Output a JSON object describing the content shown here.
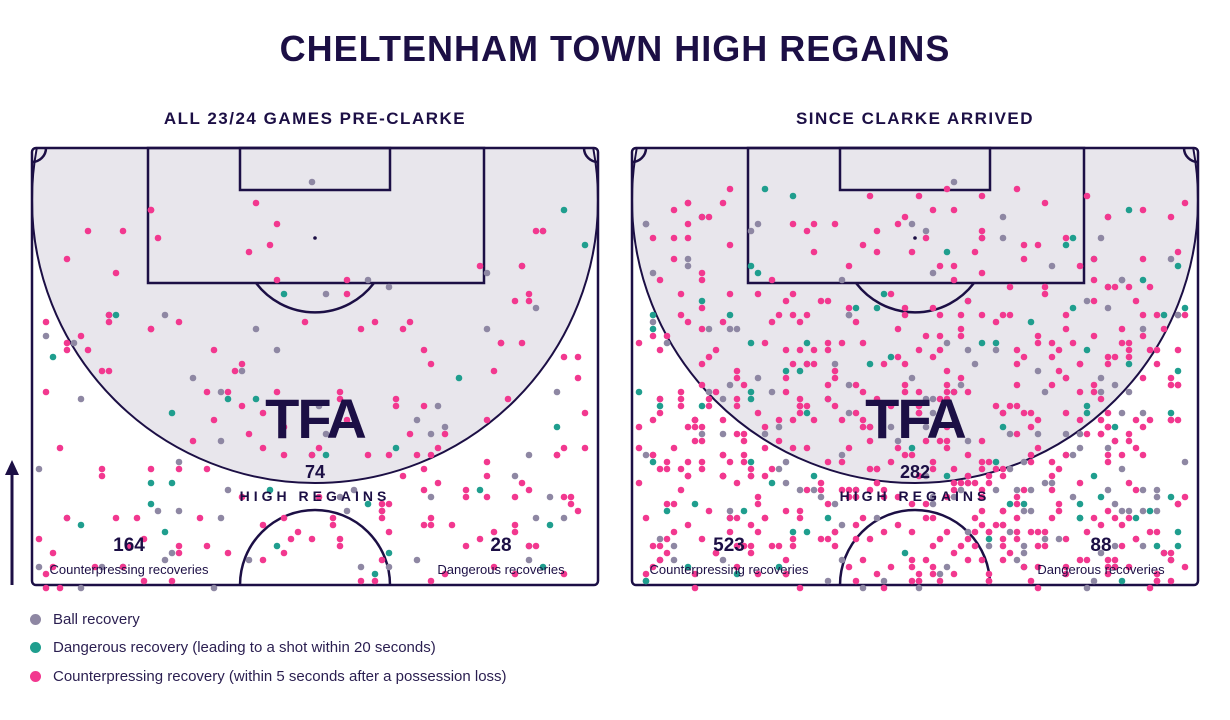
{
  "title": "CHELTENHAM TOWN HIGH REGAINS",
  "colors": {
    "ball": "#8e87a3",
    "dangerous": "#1f9e8e",
    "counter": "#f2388f",
    "pitch_fill": "#e8e6ec",
    "line": "#1c0f45"
  },
  "chart_data": {
    "type": "scatter",
    "panels": [
      {
        "subtitle": "ALL 23/24 GAMES PRE-CLARKE",
        "high_regains": "74",
        "high_regains_label": "HIGH REGAINS",
        "counter_value": "164",
        "counter_label": "Counterpressing recoveries",
        "dangerous_value": "28",
        "dangerous_label": "Dangerous recoveries",
        "dot_counts": {
          "ball": 55,
          "dangerous": 28,
          "counter": 164
        }
      },
      {
        "subtitle": "SINCE CLARKE ARRIVED",
        "high_regains": "282",
        "high_regains_label": "HIGH REGAINS",
        "counter_value": "523",
        "counter_label": "Counterpressing recoveries",
        "dangerous_value": "88",
        "dangerous_label": "Dangerous recoveries",
        "dot_counts": {
          "ball": 150,
          "dangerous": 88,
          "counter": 523
        }
      }
    ],
    "logo": "TFA"
  },
  "legend": [
    {
      "label": "Ball recovery",
      "key": "ball"
    },
    {
      "label": "Dangerous recovery (leading to a shot within 20 seconds)",
      "key": "dangerous"
    },
    {
      "label": "Counterpressing recovery (within 5 seconds after a possession loss)",
      "key": "counter"
    }
  ]
}
